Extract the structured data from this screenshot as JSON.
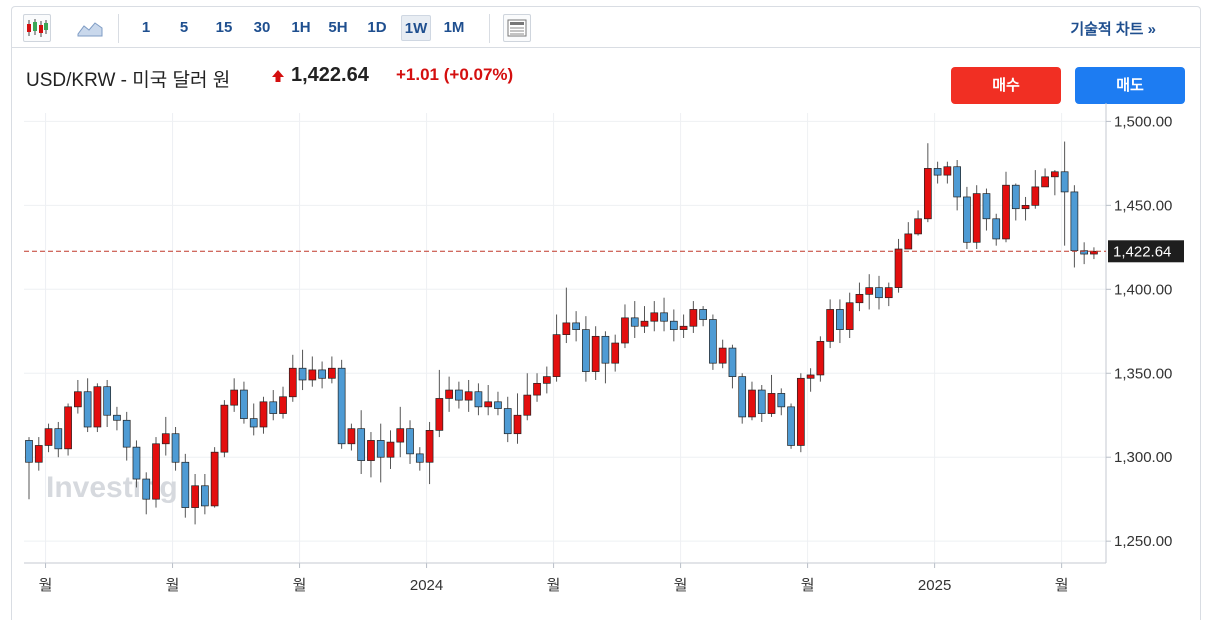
{
  "toolbar": {
    "candle_icon": "candlestick-icon",
    "area_icon": "area-chart-icon",
    "intervals": [
      "1",
      "5",
      "15",
      "30",
      "1H",
      "5H",
      "1D",
      "1W",
      "1M"
    ],
    "active_interval": "1W",
    "news_icon": "news-icon",
    "advanced_link": "기술적 차트 »"
  },
  "header": {
    "title": "USD/KRW - 미국 달러 원",
    "price": "1,422.64",
    "change": "+1.01 (+0.07%)",
    "direction_icon": "up-arrow-icon",
    "buy_label": "매수",
    "sell_label": "매도"
  },
  "watermark": "Investing",
  "colors": {
    "up": "#e30e0e",
    "down": "#4e9bd4",
    "accent": "#1f4f8f",
    "current_line": "#c0392b"
  },
  "chart_data": {
    "type": "candlestick",
    "ylim": [
      1237,
      1505
    ],
    "y_ticks": [
      "1,250.00",
      "1,300.00",
      "1,350.00",
      "1,400.00",
      "1,450.00",
      "1,500.00"
    ],
    "y_tick_values": [
      1250,
      1300,
      1350,
      1400,
      1450,
      1500
    ],
    "x_ticks": [
      "월",
      "월",
      "월",
      "2024",
      "월",
      "월",
      "월",
      "2025",
      "월"
    ],
    "x_tick_index": [
      2,
      15,
      28,
      41,
      54,
      67,
      80,
      93,
      106
    ],
    "current_value": 1422.64,
    "current_label": "1,422.64",
    "grid": true,
    "candles": [
      [
        1310,
        1297,
        1312,
        1275
      ],
      [
        1297,
        1307,
        1312,
        1292
      ],
      [
        1307,
        1317,
        1320,
        1303
      ],
      [
        1317,
        1305,
        1321,
        1300
      ],
      [
        1305,
        1330,
        1332,
        1301
      ],
      [
        1330,
        1339,
        1346,
        1326
      ],
      [
        1339,
        1318,
        1347,
        1315
      ],
      [
        1318,
        1342,
        1344,
        1315
      ],
      [
        1342,
        1325,
        1346,
        1318
      ],
      [
        1325,
        1322,
        1330,
        1316
      ],
      [
        1322,
        1306,
        1327,
        1298
      ],
      [
        1306,
        1287,
        1310,
        1282
      ],
      [
        1287,
        1275,
        1291,
        1266
      ],
      [
        1275,
        1308,
        1312,
        1270
      ],
      [
        1308,
        1314,
        1324,
        1301
      ],
      [
        1314,
        1297,
        1318,
        1292
      ],
      [
        1297,
        1270,
        1302,
        1264
      ],
      [
        1270,
        1283,
        1290,
        1260
      ],
      [
        1283,
        1271,
        1290,
        1266
      ],
      [
        1271,
        1303,
        1306,
        1270
      ],
      [
        1303,
        1331,
        1334,
        1300
      ],
      [
        1331,
        1340,
        1347,
        1327
      ],
      [
        1340,
        1323,
        1345,
        1320
      ],
      [
        1323,
        1318,
        1332,
        1313
      ],
      [
        1318,
        1333,
        1336,
        1314
      ],
      [
        1333,
        1326,
        1340,
        1322
      ],
      [
        1326,
        1336,
        1342,
        1323
      ],
      [
        1336,
        1353,
        1361,
        1333
      ],
      [
        1353,
        1346,
        1364,
        1340
      ],
      [
        1346,
        1352,
        1360,
        1342
      ],
      [
        1352,
        1347,
        1357,
        1341
      ],
      [
        1347,
        1353,
        1360,
        1344
      ],
      [
        1353,
        1308,
        1358,
        1305
      ],
      [
        1308,
        1317,
        1320,
        1304
      ],
      [
        1317,
        1298,
        1328,
        1290
      ],
      [
        1298,
        1310,
        1315,
        1288
      ],
      [
        1310,
        1300,
        1320,
        1285
      ],
      [
        1300,
        1309,
        1316,
        1293
      ],
      [
        1309,
        1317,
        1330,
        1300
      ],
      [
        1317,
        1302,
        1322,
        1296
      ],
      [
        1302,
        1297,
        1306,
        1292
      ],
      [
        1297,
        1316,
        1321,
        1284
      ],
      [
        1316,
        1335,
        1352,
        1312
      ],
      [
        1335,
        1340,
        1348,
        1327
      ],
      [
        1340,
        1334,
        1345,
        1329
      ],
      [
        1334,
        1339,
        1346,
        1327
      ],
      [
        1339,
        1330,
        1344,
        1325
      ],
      [
        1330,
        1333,
        1343,
        1325
      ],
      [
        1333,
        1329,
        1339,
        1325
      ],
      [
        1329,
        1314,
        1336,
        1309
      ],
      [
        1314,
        1325,
        1338,
        1308
      ],
      [
        1325,
        1337,
        1350,
        1322
      ],
      [
        1337,
        1344,
        1350,
        1333
      ],
      [
        1344,
        1348,
        1354,
        1338
      ],
      [
        1348,
        1373,
        1385,
        1345
      ],
      [
        1373,
        1380,
        1401,
        1368
      ],
      [
        1380,
        1376,
        1387,
        1369
      ],
      [
        1376,
        1351,
        1384,
        1345
      ],
      [
        1351,
        1372,
        1378,
        1346
      ],
      [
        1372,
        1356,
        1375,
        1344
      ],
      [
        1356,
        1368,
        1373,
        1351
      ],
      [
        1368,
        1383,
        1391,
        1365
      ],
      [
        1383,
        1378,
        1393,
        1371
      ],
      [
        1378,
        1381,
        1390,
        1374
      ],
      [
        1381,
        1386,
        1393,
        1375
      ],
      [
        1386,
        1381,
        1395,
        1375
      ],
      [
        1381,
        1376,
        1388,
        1369
      ],
      [
        1376,
        1378,
        1385,
        1371
      ],
      [
        1378,
        1388,
        1393,
        1374
      ],
      [
        1388,
        1382,
        1390,
        1378
      ],
      [
        1382,
        1356,
        1385,
        1352
      ],
      [
        1356,
        1365,
        1370,
        1353
      ],
      [
        1365,
        1348,
        1367,
        1341
      ],
      [
        1348,
        1324,
        1350,
        1320
      ],
      [
        1324,
        1340,
        1345,
        1322
      ],
      [
        1340,
        1326,
        1343,
        1321
      ],
      [
        1326,
        1338,
        1349,
        1324
      ],
      [
        1338,
        1330,
        1341,
        1325
      ],
      [
        1330,
        1307,
        1332,
        1305
      ],
      [
        1307,
        1347,
        1350,
        1303
      ],
      [
        1347,
        1349,
        1353,
        1339
      ],
      [
        1349,
        1369,
        1372,
        1345
      ],
      [
        1369,
        1388,
        1394,
        1365
      ],
      [
        1388,
        1376,
        1394,
        1368
      ],
      [
        1376,
        1392,
        1398,
        1371
      ],
      [
        1392,
        1397,
        1404,
        1387
      ],
      [
        1397,
        1401,
        1409,
        1388
      ],
      [
        1401,
        1395,
        1408,
        1388
      ],
      [
        1395,
        1401,
        1404,
        1390
      ],
      [
        1401,
        1424,
        1430,
        1398
      ],
      [
        1424,
        1433,
        1440,
        1425
      ],
      [
        1433,
        1442,
        1447,
        1432
      ],
      [
        1442,
        1472,
        1487,
        1440
      ],
      [
        1472,
        1468,
        1476,
        1463
      ],
      [
        1468,
        1473,
        1476,
        1463
      ],
      [
        1473,
        1455,
        1477,
        1447
      ],
      [
        1455,
        1428,
        1461,
        1424
      ],
      [
        1428,
        1457,
        1462,
        1424
      ],
      [
        1457,
        1442,
        1460,
        1435
      ],
      [
        1442,
        1430,
        1445,
        1426
      ],
      [
        1430,
        1462,
        1470,
        1428
      ],
      [
        1462,
        1448,
        1463,
        1441
      ],
      [
        1448,
        1450,
        1455,
        1441
      ],
      [
        1450,
        1461,
        1471,
        1448
      ],
      [
        1461,
        1467,
        1472,
        1463
      ],
      [
        1467,
        1470,
        1471,
        1456
      ],
      [
        1470,
        1458,
        1488,
        1426
      ],
      [
        1458,
        1423,
        1462,
        1413
      ],
      [
        1423,
        1421,
        1428,
        1415
      ],
      [
        1421,
        1422.64,
        1425,
        1418
      ]
    ]
  }
}
